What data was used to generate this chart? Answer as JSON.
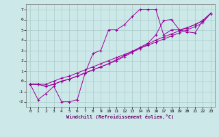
{
  "xlabel": "Windchill (Refroidissement éolien,°C)",
  "ylabel": "",
  "bg_color": "#cce8e8",
  "grid_color": "#aacccc",
  "line_color": "#990099",
  "xlim": [
    -0.5,
    23.5
  ],
  "ylim": [
    -2.5,
    7.5
  ],
  "xticks": [
    0,
    1,
    2,
    3,
    4,
    5,
    6,
    7,
    8,
    9,
    10,
    11,
    12,
    13,
    14,
    15,
    16,
    17,
    18,
    19,
    20,
    21,
    22,
    23
  ],
  "yticks": [
    -2,
    -1,
    0,
    1,
    2,
    3,
    4,
    5,
    6,
    7
  ],
  "series": [
    {
      "x": [
        0,
        1,
        2,
        3,
        4,
        5,
        6,
        7,
        8,
        9,
        10,
        11,
        12,
        13,
        14,
        15,
        16,
        17,
        18,
        19,
        20,
        21,
        22,
        23
      ],
      "y": [
        -0.3,
        -1.8,
        -1.2,
        -0.5,
        -2.0,
        -2.0,
        -1.8,
        0.8,
        2.7,
        3.0,
        5.0,
        5.0,
        5.5,
        6.3,
        7.0,
        7.0,
        7.0,
        4.5,
        5.0,
        5.0,
        4.8,
        4.7,
        5.9,
        6.6
      ]
    },
    {
      "x": [
        0,
        1,
        2,
        3,
        4,
        5,
        6,
        7,
        8,
        9,
        10,
        11,
        12,
        13,
        14,
        15,
        16,
        17,
        18,
        19,
        20,
        21,
        22,
        23
      ],
      "y": [
        -0.3,
        -0.3,
        -0.3,
        0.0,
        0.3,
        0.5,
        0.8,
        1.1,
        1.4,
        1.7,
        2.0,
        2.3,
        2.6,
        2.9,
        3.2,
        3.5,
        3.8,
        4.1,
        4.4,
        4.7,
        5.0,
        5.3,
        5.7,
        6.6
      ]
    },
    {
      "x": [
        0,
        1,
        2,
        3,
        4,
        5,
        6,
        7,
        8,
        9,
        10,
        11,
        12,
        13,
        14,
        15,
        16,
        17,
        18,
        19,
        20,
        21,
        22,
        23
      ],
      "y": [
        -0.3,
        -0.3,
        -0.5,
        -0.3,
        0.0,
        0.2,
        0.5,
        0.8,
        1.1,
        1.4,
        1.7,
        2.0,
        2.4,
        2.8,
        3.2,
        3.6,
        4.0,
        4.3,
        4.6,
        4.9,
        5.2,
        5.5,
        5.9,
        6.6
      ]
    },
    {
      "x": [
        0,
        1,
        2,
        3,
        4,
        5,
        6,
        7,
        8,
        9,
        10,
        11,
        12,
        13,
        14,
        15,
        16,
        17,
        18,
        19,
        20,
        21,
        22,
        23
      ],
      "y": [
        -0.3,
        -0.3,
        -0.5,
        -0.3,
        0.0,
        0.2,
        0.5,
        0.8,
        1.1,
        1.4,
        1.7,
        2.1,
        2.5,
        2.9,
        3.3,
        3.7,
        4.5,
        5.9,
        6.0,
        5.0,
        5.2,
        5.5,
        5.9,
        6.6
      ]
    }
  ]
}
